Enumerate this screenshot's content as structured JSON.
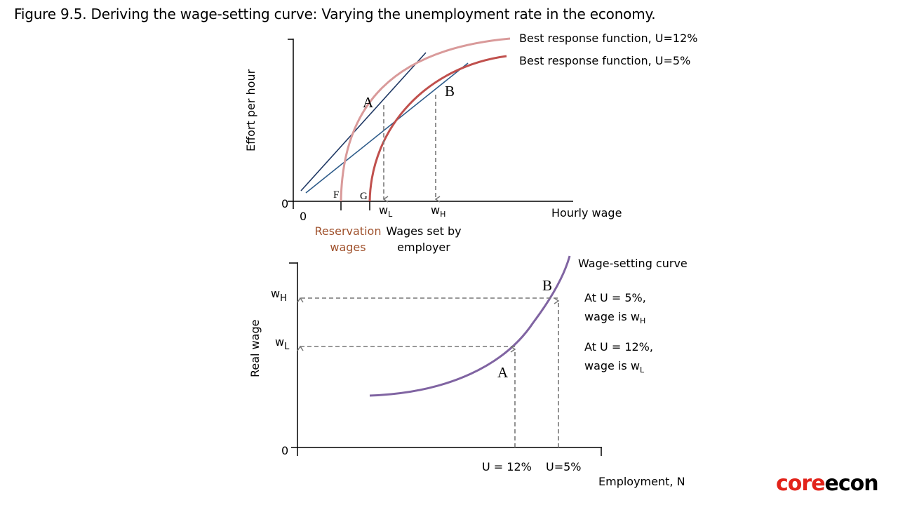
{
  "title": "Figure 9.5. Deriving the wage-setting curve: Varying the unemployment rate in the economy.",
  "top_panel": {
    "y_axis_label": "Effort  per hour",
    "x_axis_label": "Hourly wage",
    "origin_y": "0",
    "origin_x": "0",
    "curve_u12_label": "Best response function, U=12%",
    "curve_u5_label": "Best response function, U=5%",
    "point_a": "A",
    "point_b": "B",
    "point_f": "F",
    "point_g": "G",
    "wl_main": "w",
    "wl_sub": "L",
    "wh_main": "w",
    "wh_sub": "H",
    "reservation_line1": "Reservation",
    "reservation_line2": "wages",
    "employer_line1": "Wages set by",
    "employer_line2": "employer",
    "colors": {
      "u12": "#d99a9a",
      "u5": "#c0504d",
      "isocost": "#1f3864",
      "reservation_text": "#a0522d"
    }
  },
  "bottom_panel": {
    "y_axis_label": "Real wage",
    "x_axis_label": "Employment, N",
    "origin": "0",
    "curve_label": "Wage-setting curve",
    "point_a": "A",
    "point_b": "B",
    "wh_main": "w",
    "wh_sub": "H",
    "wl_main": "w",
    "wl_sub": "L",
    "x_tick_u12": "U = 12%",
    "x_tick_u5": "U=5%",
    "note_u5_line1": "At U = 5%,",
    "note_u5_line2_main": "wage is w",
    "note_u5_line2_sub": "H",
    "note_u12_line1": "At U = 12%,",
    "note_u12_line2_main": "wage is w",
    "note_u12_line2_sub": "L",
    "colors": {
      "curve": "#8064a2"
    }
  },
  "logo": {
    "part1": "core",
    "part2": "econ"
  }
}
